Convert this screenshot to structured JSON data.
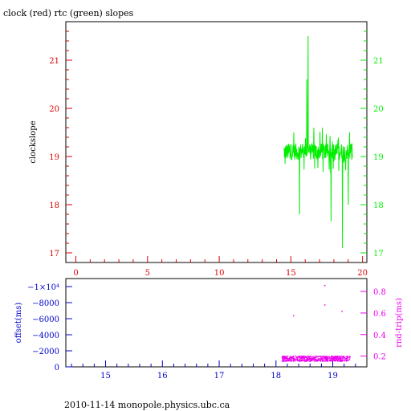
{
  "title": "clock (red) rtc (green) slopes",
  "footer": "2010-11-14 monopole.physics.ubc.ca",
  "colors": {
    "frame": "#000000",
    "red_axis": "#dd0000",
    "green": "#00ee00",
    "blue_axis": "#0000cc",
    "magenta": "#ee00ee"
  },
  "chart_data": [
    {
      "type": "line",
      "panel": "top",
      "title": "clock (red) rtc (green) slopes",
      "ylabel": "clockslope",
      "xlim": [
        -0.7,
        20.3
      ],
      "ylim": [
        16.8,
        21.8
      ],
      "x_ticks": [
        0,
        5,
        10,
        15,
        20
      ],
      "y_ticks_left": [
        17,
        18,
        19,
        20,
        21
      ],
      "y_ticks_right": [
        17,
        18,
        19,
        20,
        21
      ],
      "tick_labels_x": [
        "0",
        "5",
        "10",
        "15",
        "20"
      ],
      "tick_labels_y_left": [
        "17",
        "18",
        "19",
        "20",
        "21"
      ],
      "tick_labels_y_right": [
        "17",
        "18",
        "19",
        "20",
        "21"
      ],
      "series": [
        {
          "color": "#00ee00",
          "x_range": [
            14.5,
            19.3
          ],
          "baseline": 19.1,
          "spikes": [
            {
              "x": 16.2,
              "y": 21.5
            },
            {
              "x": 16.1,
              "y": 20.6
            },
            {
              "x": 15.6,
              "y": 17.8
            },
            {
              "x": 17.8,
              "y": 17.65
            },
            {
              "x": 18.6,
              "y": 17.1
            },
            {
              "x": 19.0,
              "y": 18.0
            },
            {
              "x": 16.6,
              "y": 19.6
            },
            {
              "x": 17.2,
              "y": 19.6
            },
            {
              "x": 15.2,
              "y": 19.5
            },
            {
              "x": 14.6,
              "y": 18.85
            }
          ]
        }
      ]
    },
    {
      "type": "scatter",
      "panel": "bottom",
      "ylabel_left": "offset(ms)",
      "ylabel_right": "rnd-trip(ms)",
      "xlim": [
        14.3,
        19.6
      ],
      "ylim_left": [
        0,
        -11000
      ],
      "ylim_right": [
        0.1,
        0.92
      ],
      "x_ticks": [
        15,
        16,
        17,
        18,
        19
      ],
      "tick_labels_x": [
        "15",
        "16",
        "17",
        "18",
        "19"
      ],
      "y_ticks_left": [
        0,
        -2000,
        -4000,
        -6000,
        -8000,
        -10000
      ],
      "tick_labels_y_left": [
        "0",
        "−2000",
        "−4000",
        "−6000",
        "−8000",
        "−1×10⁴"
      ],
      "y_ticks_right": [
        0.2,
        0.4,
        0.6,
        0.8
      ],
      "tick_labels_y_right": [
        "0.2",
        "0.4",
        "0.6",
        "0.8"
      ],
      "series": [
        {
          "axis": "right",
          "color": "#ee00ee",
          "x_range": [
            18.1,
            19.3
          ],
          "baseline": 0.18,
          "outliers": [
            {
              "x": 18.85,
              "y": 0.86
            },
            {
              "x": 18.85,
              "y": 0.68
            },
            {
              "x": 19.15,
              "y": 0.62
            },
            {
              "x": 18.3,
              "y": 0.58
            }
          ]
        }
      ]
    }
  ]
}
